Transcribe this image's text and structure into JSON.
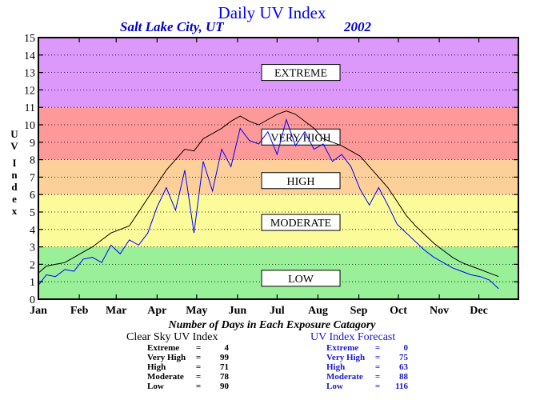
{
  "header": {
    "title": "Daily UV Index",
    "location": "Salt Lake City, UT",
    "year": "2002"
  },
  "y_axis_letters": [
    "U",
    "V",
    "I",
    "n",
    "d",
    "e",
    "x"
  ],
  "caption": "Number of Days in Each Exposure Catagory",
  "clear_sky": {
    "heading": "Clear Sky UV Index",
    "rows": [
      {
        "name": "Extreme",
        "eq": "=",
        "value": "4"
      },
      {
        "name": "Very High",
        "eq": "=",
        "value": "99"
      },
      {
        "name": "High",
        "eq": "=",
        "value": "71"
      },
      {
        "name": "Moderate",
        "eq": "=",
        "value": "78"
      },
      {
        "name": "Low",
        "eq": "=",
        "value": "90"
      }
    ]
  },
  "forecast": {
    "heading": "UV Index Forecast",
    "rows": [
      {
        "name": "Extreme",
        "eq": "=",
        "value": "0"
      },
      {
        "name": "Very High",
        "eq": "=",
        "value": "75"
      },
      {
        "name": "High",
        "eq": "=",
        "value": "63"
      },
      {
        "name": "Moderate",
        "eq": "=",
        "value": "88"
      },
      {
        "name": "Low",
        "eq": "=",
        "value": "116"
      }
    ]
  },
  "chart_data": {
    "type": "line",
    "title": "Daily UV Index",
    "subtitle": "Salt Lake City, UT 2002",
    "ylabel": "UV Index",
    "xlabel": "",
    "ylim": [
      0,
      15
    ],
    "xlim": [
      1,
      365
    ],
    "yticks": [
      0,
      1,
      2,
      3,
      4,
      5,
      6,
      7,
      8,
      9,
      10,
      11,
      12,
      13,
      14,
      15
    ],
    "xticks": [
      {
        "day": 1,
        "label": "Jan"
      },
      {
        "day": 32,
        "label": "Feb"
      },
      {
        "day": 60,
        "label": "Mar"
      },
      {
        "day": 91,
        "label": "Apr"
      },
      {
        "day": 121,
        "label": "May"
      },
      {
        "day": 152,
        "label": "Jun"
      },
      {
        "day": 182,
        "label": "Jul"
      },
      {
        "day": 213,
        "label": "Aug"
      },
      {
        "day": 244,
        "label": "Sep"
      },
      {
        "day": 274,
        "label": "Oct"
      },
      {
        "day": 305,
        "label": "Nov"
      },
      {
        "day": 335,
        "label": "Dec"
      }
    ],
    "grid": "dotted horizontal",
    "bands": [
      {
        "label": "LOW",
        "from": 0,
        "to": 3,
        "color": "#99f099",
        "label_at": 1.2
      },
      {
        "label": "MODERATE",
        "from": 3,
        "to": 6,
        "color": "#fbfb99",
        "label_at": 4.4
      },
      {
        "label": "HIGH",
        "from": 6,
        "to": 8,
        "color": "#fdcf99",
        "label_at": 6.8
      },
      {
        "label": "VERY HIGH",
        "from": 8,
        "to": 11,
        "color": "#fd9a99",
        "label_at": 9.3
      },
      {
        "label": "EXTREME",
        "from": 11,
        "to": 15,
        "color": "#dc99fb",
        "label_at": 13.0
      }
    ],
    "series": [
      {
        "color": "#000000",
        "points": [
          [
            1,
            1.5
          ],
          [
            7,
            1.9
          ],
          [
            14,
            2.0
          ],
          [
            21,
            2.1
          ],
          [
            28,
            2.4
          ],
          [
            35,
            2.7
          ],
          [
            42,
            3.0
          ],
          [
            49,
            3.4
          ],
          [
            56,
            3.8
          ],
          [
            63,
            4.0
          ],
          [
            70,
            4.2
          ],
          [
            77,
            5.0
          ],
          [
            84,
            5.8
          ],
          [
            91,
            6.6
          ],
          [
            98,
            7.4
          ],
          [
            105,
            8.0
          ],
          [
            112,
            8.6
          ],
          [
            119,
            8.5
          ],
          [
            126,
            9.2
          ],
          [
            133,
            9.5
          ],
          [
            140,
            9.8
          ],
          [
            147,
            10.2
          ],
          [
            154,
            10.5
          ],
          [
            161,
            10.2
          ],
          [
            168,
            10.0
          ],
          [
            175,
            10.3
          ],
          [
            182,
            10.6
          ],
          [
            189,
            10.8
          ],
          [
            196,
            10.6
          ],
          [
            203,
            10.2
          ],
          [
            210,
            9.8
          ],
          [
            217,
            9.2
          ],
          [
            224,
            9.0
          ],
          [
            231,
            8.8
          ],
          [
            238,
            8.5
          ],
          [
            245,
            8.2
          ],
          [
            252,
            7.6
          ],
          [
            259,
            7.0
          ],
          [
            266,
            6.4
          ],
          [
            273,
            5.6
          ],
          [
            280,
            4.8
          ],
          [
            287,
            4.2
          ],
          [
            294,
            3.7
          ],
          [
            301,
            3.2
          ],
          [
            308,
            2.8
          ],
          [
            315,
            2.4
          ],
          [
            322,
            2.1
          ],
          [
            329,
            1.9
          ],
          [
            336,
            1.7
          ],
          [
            343,
            1.5
          ],
          [
            350,
            1.3
          ]
        ]
      },
      {
        "color": "#0000ff",
        "points": [
          [
            1,
            0.8
          ],
          [
            7,
            1.4
          ],
          [
            14,
            1.3
          ],
          [
            21,
            1.7
          ],
          [
            28,
            1.6
          ],
          [
            35,
            2.3
          ],
          [
            42,
            2.4
          ],
          [
            49,
            2.1
          ],
          [
            56,
            3.1
          ],
          [
            63,
            2.6
          ],
          [
            70,
            3.4
          ],
          [
            77,
            3.1
          ],
          [
            84,
            3.8
          ],
          [
            91,
            5.3
          ],
          [
            98,
            6.4
          ],
          [
            105,
            5.1
          ],
          [
            112,
            7.4
          ],
          [
            119,
            3.8
          ],
          [
            126,
            7.9
          ],
          [
            133,
            6.2
          ],
          [
            140,
            8.6
          ],
          [
            147,
            7.6
          ],
          [
            154,
            9.8
          ],
          [
            161,
            9.1
          ],
          [
            168,
            8.9
          ],
          [
            175,
            9.6
          ],
          [
            182,
            8.3
          ],
          [
            189,
            10.3
          ],
          [
            196,
            8.8
          ],
          [
            203,
            9.6
          ],
          [
            210,
            8.6
          ],
          [
            217,
            8.9
          ],
          [
            224,
            7.9
          ],
          [
            231,
            8.3
          ],
          [
            238,
            7.6
          ],
          [
            245,
            6.3
          ],
          [
            252,
            5.4
          ],
          [
            259,
            6.4
          ],
          [
            266,
            5.4
          ],
          [
            273,
            4.3
          ],
          [
            280,
            3.8
          ],
          [
            287,
            3.3
          ],
          [
            294,
            2.8
          ],
          [
            301,
            2.4
          ],
          [
            308,
            2.1
          ],
          [
            315,
            1.8
          ],
          [
            322,
            1.6
          ],
          [
            329,
            1.4
          ],
          [
            336,
            1.3
          ],
          [
            343,
            1.1
          ],
          [
            350,
            0.6
          ]
        ]
      }
    ]
  }
}
